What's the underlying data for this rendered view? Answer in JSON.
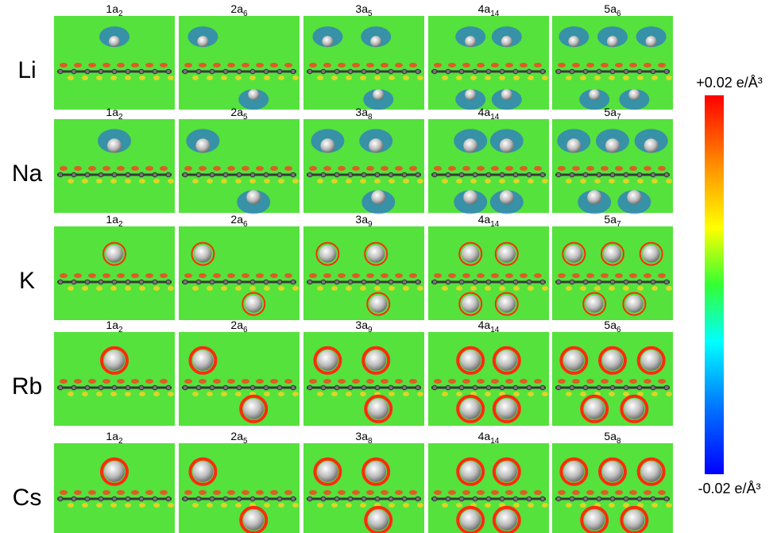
{
  "rows": [
    {
      "label": "Li",
      "panels": [
        {
          "prefix": "1a",
          "subscript": "2"
        },
        {
          "prefix": "2a",
          "subscript": "6"
        },
        {
          "prefix": "3a",
          "subscript": "5"
        },
        {
          "prefix": "4a",
          "subscript": "14"
        },
        {
          "prefix": "5a",
          "subscript": "6"
        }
      ]
    },
    {
      "label": "Na",
      "panels": [
        {
          "prefix": "1a",
          "subscript": "2"
        },
        {
          "prefix": "2a",
          "subscript": "5"
        },
        {
          "prefix": "3a",
          "subscript": "8"
        },
        {
          "prefix": "4a",
          "subscript": "14"
        },
        {
          "prefix": "5a",
          "subscript": "7"
        }
      ]
    },
    {
      "label": "K",
      "panels": [
        {
          "prefix": "1a",
          "subscript": "2"
        },
        {
          "prefix": "2a",
          "subscript": "6"
        },
        {
          "prefix": "3a",
          "subscript": "9"
        },
        {
          "prefix": "4a",
          "subscript": "14"
        },
        {
          "prefix": "5a",
          "subscript": "7"
        }
      ]
    },
    {
      "label": "Rb",
      "panels": [
        {
          "prefix": "1a",
          "subscript": "2"
        },
        {
          "prefix": "2a",
          "subscript": "6"
        },
        {
          "prefix": "3a",
          "subscript": "9"
        },
        {
          "prefix": "4a",
          "subscript": "14"
        },
        {
          "prefix": "5a",
          "subscript": "6"
        }
      ]
    },
    {
      "label": "Cs",
      "panels": [
        {
          "prefix": "1a",
          "subscript": "2"
        },
        {
          "prefix": "2a",
          "subscript": "5"
        },
        {
          "prefix": "3a",
          "subscript": "8"
        },
        {
          "prefix": "4a",
          "subscript": "14"
        },
        {
          "prefix": "5a",
          "subscript": "8"
        }
      ]
    }
  ],
  "colorbar": {
    "max_label": "+0.02 e/Å³",
    "min_label": "-0.02 e/Å³"
  }
}
